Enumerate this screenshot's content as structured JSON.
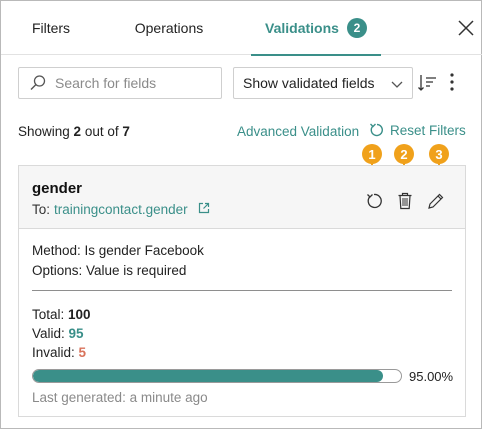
{
  "tabs": [
    {
      "label": "Filters"
    },
    {
      "label": "Operations"
    },
    {
      "label": "Validations",
      "badge": "2",
      "active": true
    }
  ],
  "toolbar": {
    "search_placeholder": "Search for fields",
    "dropdown_value": "Show validated fields"
  },
  "summary": {
    "prefix": "Showing ",
    "shown": "2",
    "middle": " out of ",
    "total": "7",
    "advanced_label": "Advanced Validation",
    "reset_label": "Reset Filters"
  },
  "card": {
    "field": "gender",
    "to_prefix": "To:",
    "to_link": "trainingcontact.gender",
    "method": "Method: Is gender Facebook",
    "options": "Options: Value is required",
    "total_label": "Total: ",
    "total_value": "100",
    "valid_label": "Valid: ",
    "valid_value": "95",
    "invalid_label": "Invalid: ",
    "invalid_value": "5",
    "progress": 0.95,
    "progress_label": "95.00%",
    "last_generated": "Last generated: a minute ago"
  },
  "callouts": [
    "1",
    "2",
    "3"
  ],
  "colors": {
    "accent": "#3a8f89",
    "invalid": "#d9735b",
    "callout": "#f0a11b"
  },
  "icons": [
    "search-icon",
    "chevron-down-icon",
    "sort-icon",
    "more-icon",
    "close-icon",
    "refresh-icon",
    "external-link-icon",
    "trash-icon",
    "pencil-icon"
  ]
}
